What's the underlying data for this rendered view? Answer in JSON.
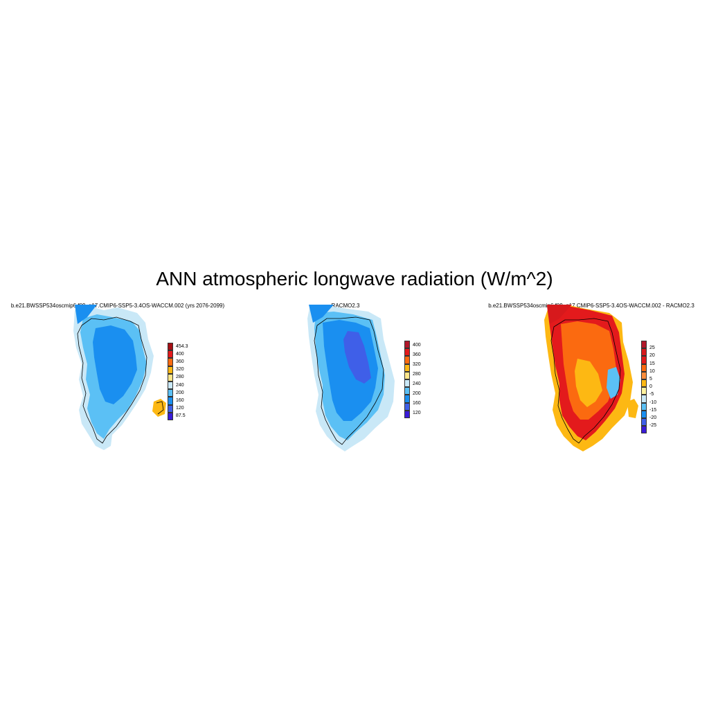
{
  "title": "ANN atmospheric longwave radiation (W/m^2)",
  "panels": [
    {
      "title": "b.e21.BWSSP534oscmip6.f09_g17.CMIP6-SSP5-3.4OS-WACCM.002 (yrs 2076-2099)",
      "colorbar": {
        "labels": [
          "454.3",
          "400",
          "360",
          "320",
          "280",
          "240",
          "200",
          "160",
          "120",
          "87.5"
        ],
        "colors": [
          "#a50f15",
          "#e31a1c",
          "#fb6a10",
          "#fdb813",
          "#fde68a",
          "#c9e8f7",
          "#5bc0f5",
          "#1a8ff0",
          "#3f5fe8",
          "#3a1bd8"
        ]
      },
      "fill_colors": {
        "coast": "#c9e8f7",
        "margin": "#5bc0f5",
        "interior": "#1a8ff0",
        "warm": "#fdb813"
      }
    },
    {
      "title": "RACMO2.3",
      "colorbar": {
        "labels": [
          "400",
          "360",
          "320",
          "280",
          "240",
          "200",
          "160",
          "120"
        ],
        "colors": [
          "#b2182b",
          "#e31a1c",
          "#fb6a10",
          "#fdb813",
          "#fde68a",
          "#c9e8f7",
          "#5bc0f5",
          "#1a8ff0",
          "#3f5fe8",
          "#3a1bd8"
        ]
      },
      "fill_colors": {
        "coast": "#c9e8f7",
        "margin": "#5bc0f5",
        "interior": "#1a8ff0",
        "core": "#3f5fe8"
      }
    },
    {
      "title": "b.e21.BWSSP534oscmip6.f09_g17.CMIP6-SSP5-3.4OS-WACCM.002 - RACMO2.3",
      "colorbar": {
        "labels": [
          "25",
          "20",
          "15",
          "10",
          "5",
          "0",
          "-5",
          "-10",
          "-15",
          "-20",
          "-25"
        ],
        "colors": [
          "#b2182b",
          "#d7191c",
          "#e31a1c",
          "#fb6a10",
          "#fd8d3c",
          "#fdb813",
          "#fff3a0",
          "#c9e8f7",
          "#5bc0f5",
          "#1a8ff0",
          "#3f5fe8",
          "#3a1bd8"
        ]
      },
      "fill_colors": {
        "coast": "#fdb813",
        "margin": "#e31a1c",
        "interior": "#fb6a10",
        "core": "#fdb813",
        "cool": "#5bc0f5"
      }
    }
  ]
}
